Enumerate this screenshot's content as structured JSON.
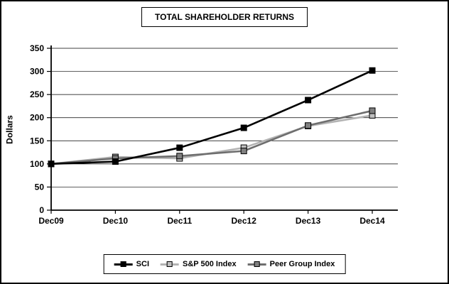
{
  "chart_data": {
    "type": "line",
    "title": "TOTAL SHAREHOLDER RETURNS",
    "ylabel": "Dollars",
    "categories": [
      "Dec09",
      "Dec10",
      "Dec11",
      "Dec12",
      "Dec13",
      "Dec14"
    ],
    "series": [
      {
        "name": "SCI",
        "color": "#000000",
        "marker_fill": "#000000",
        "values": [
          100,
          105,
          135,
          178,
          238,
          302
        ]
      },
      {
        "name": "S&P 500 Index",
        "color": "#b3b3b3",
        "marker_fill": "#c0c0c0",
        "values": [
          100,
          115,
          112,
          135,
          182,
          205
        ]
      },
      {
        "name": "Peer Group Index",
        "color": "#6e6e6e",
        "marker_fill": "#808080",
        "values": [
          100,
          112,
          117,
          128,
          183,
          215
        ]
      }
    ],
    "ylim": [
      0,
      350
    ],
    "ytick_step": 50,
    "grid": true,
    "legend_position": "bottom"
  }
}
